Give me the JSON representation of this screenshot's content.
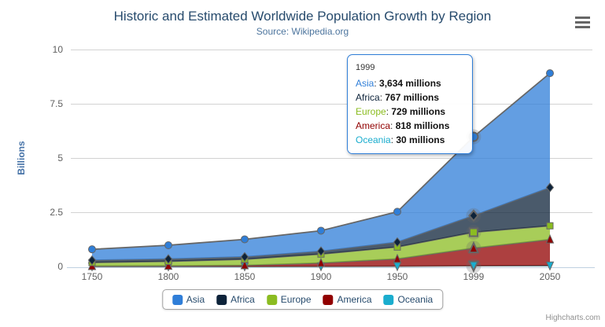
{
  "header": {
    "title": "Historic and Estimated Worldwide Population Growth by Region",
    "subtitle": "Source: Wikipedia.org"
  },
  "credits": "Highcharts.com",
  "chart_data": {
    "type": "area",
    "stacking": "normal",
    "title": "Historic and Estimated Worldwide Population Growth by Region",
    "subtitle": "Source: Wikipedia.org",
    "xlabel": "",
    "ylabel": "Billions",
    "ylim": [
      0,
      10
    ],
    "y_ticks": [
      "0",
      "2.5",
      "5",
      "7.5",
      "10"
    ],
    "grid": true,
    "legend_position": "bottom",
    "values_unit": "millions",
    "categories": [
      "1750",
      "1800",
      "1850",
      "1900",
      "1950",
      "1999",
      "2050"
    ],
    "hover_category_index": 5,
    "series": [
      {
        "name": "Asia",
        "color": "#2f7ed8",
        "marker": "circle",
        "values": [
          502,
          635,
          809,
          947,
          1402,
          3634,
          5268
        ]
      },
      {
        "name": "Africa",
        "color": "#0d233a",
        "marker": "diamond",
        "values": [
          106,
          107,
          111,
          133,
          221,
          767,
          1766
        ]
      },
      {
        "name": "Europe",
        "color": "#8bbc21",
        "marker": "square",
        "values": [
          163,
          203,
          276,
          408,
          547,
          729,
          628
        ]
      },
      {
        "name": "America",
        "color": "#910000",
        "marker": "triangle",
        "values": [
          18,
          31,
          54,
          156,
          339,
          818,
          1201
        ]
      },
      {
        "name": "Oceania",
        "color": "#1aadce",
        "marker": "triangle-down",
        "values": [
          2,
          2,
          2,
          6,
          13,
          30,
          46
        ]
      }
    ]
  },
  "tooltip": {
    "header": "1999",
    "rows": [
      {
        "name": "Asia",
        "color": "#2f7ed8",
        "value": "3,634 millions"
      },
      {
        "name": "Africa",
        "color": "#0d233a",
        "value": "767 millions"
      },
      {
        "name": "Europe",
        "color": "#8bbc21",
        "value": "729 millions"
      },
      {
        "name": "America",
        "color": "#910000",
        "value": "818 millions"
      },
      {
        "name": "Oceania",
        "color": "#1aadce",
        "value": "30 millions"
      }
    ]
  },
  "legend": {
    "items": [
      {
        "label": "Asia",
        "color": "#2f7ed8"
      },
      {
        "label": "Africa",
        "color": "#0d233a"
      },
      {
        "label": "Europe",
        "color": "#8bbc21"
      },
      {
        "label": "America",
        "color": "#910000"
      },
      {
        "label": "Oceania",
        "color": "#1aadce"
      }
    ]
  },
  "colors": {
    "title": "#274b6d",
    "subtitle": "#4d759e",
    "axis_label": "#606060",
    "yaxis_title": "#4572a7",
    "gridline": "#d2d2d2",
    "axis_line": "#c0d0e0",
    "series_edge": "#666666",
    "tooltip_border": "#2f7ed8"
  }
}
